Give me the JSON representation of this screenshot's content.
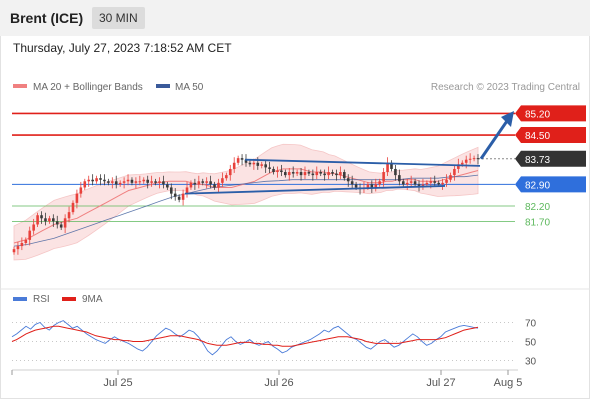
{
  "header": {
    "instrument": "Brent (ICE)",
    "timeframe": "30 MIN",
    "datetime": "Thursday, July 27, 2023 7:18:52 AM CET"
  },
  "legend": {
    "ma20_label": "MA 20 + Bollinger Bands",
    "ma50_label": "MA 50",
    "credit": "Research © 2023 Trading Central",
    "rsi_label": "RSI",
    "ma9_label": "9MA"
  },
  "colors": {
    "up": "#e8413b",
    "down": "#3b3b3b",
    "ma20": "#f08080",
    "ma50": "#3a5a9a",
    "bollinger_fill": "#fbe3e3",
    "resistance": "#e0201a",
    "current": "#333333",
    "pivot": "#2f6fdc",
    "support": "#5cb85c",
    "arrow": "#2b5ea8",
    "rsi": "#4a7bd8",
    "rsi_ma": "#e0201a"
  },
  "chart_data": [
    {
      "type": "candlestick",
      "x_ticks": [
        "Jul 25",
        "Jul 26",
        "Jul 27",
        "Aug 5"
      ],
      "ylim": [
        79.8,
        85.7
      ],
      "levels": [
        {
          "value": 85.2,
          "label": "85.20",
          "kind": "resistance"
        },
        {
          "value": 84.5,
          "label": "84.50",
          "kind": "resistance"
        },
        {
          "value": 83.73,
          "label": "83.73",
          "kind": "current"
        },
        {
          "value": 82.9,
          "label": "82.90",
          "kind": "pivot"
        },
        {
          "value": 82.2,
          "label": "82.20",
          "kind": "support"
        },
        {
          "value": 81.7,
          "label": "81.70",
          "kind": "support"
        }
      ],
      "close_values": [
        80.8,
        80.9,
        81.0,
        81.1,
        81.4,
        81.6,
        81.9,
        81.8,
        81.7,
        81.8,
        81.7,
        81.6,
        81.5,
        81.8,
        82.0,
        82.3,
        82.6,
        82.8,
        83.0,
        83.05,
        83.0,
        83.1,
        83.05,
        83.0,
        82.95,
        83.0,
        82.9,
        82.95,
        83.0,
        83.05,
        82.95,
        83.0,
        83.0,
        83.05,
        82.95,
        83.0,
        82.95,
        83.0,
        82.9,
        82.8,
        82.6,
        82.5,
        82.4,
        82.6,
        82.8,
        82.95,
        82.9,
        83.0,
        82.95,
        83.0,
        82.9,
        82.8,
        82.95,
        83.1,
        83.2,
        83.4,
        83.6,
        83.75,
        83.7,
        83.6,
        83.55,
        83.6,
        83.5,
        83.55,
        83.45,
        83.4,
        83.3,
        83.35,
        83.3,
        83.2,
        83.3,
        83.25,
        83.3,
        83.2,
        83.3,
        83.25,
        83.2,
        83.3,
        83.25,
        83.2,
        83.3,
        83.25,
        83.2,
        83.3,
        83.1,
        83.0,
        82.9,
        82.8,
        82.75,
        82.8,
        82.9,
        82.8,
        82.9,
        83.0,
        83.3,
        83.6,
        83.4,
        83.2,
        83.0,
        82.9,
        82.95,
        83.0,
        82.9,
        82.85,
        82.9,
        82.95,
        83.0,
        82.95,
        82.9,
        82.95,
        83.05,
        83.2,
        83.4,
        83.55,
        83.6,
        83.7,
        83.73,
        83.75,
        83.73
      ],
      "ma20_values": [
        81.0,
        81.05,
        81.1,
        81.2,
        81.3,
        81.4,
        81.5,
        81.6,
        81.65,
        81.7,
        81.75,
        81.8,
        81.9,
        82.0,
        82.1,
        82.2,
        82.3,
        82.4,
        82.5,
        82.6,
        82.7,
        82.75,
        82.8,
        82.85,
        82.9,
        82.95,
        82.97,
        83.0,
        83.0,
        83.0,
        83.0,
        82.95,
        82.9,
        82.9,
        82.85,
        82.8,
        82.8,
        82.8,
        82.8,
        82.85,
        82.9,
        82.95,
        83.0,
        83.1,
        83.2,
        83.3,
        83.35,
        83.4,
        83.4,
        83.4,
        83.4,
        83.35,
        83.3,
        83.3,
        83.3,
        83.25,
        83.25,
        83.2,
        83.15,
        83.1,
        83.05,
        83.0,
        82.95,
        82.95,
        82.95,
        83.0,
        83.0,
        83.05,
        83.05,
        83.05,
        83.05,
        83.0,
        83.0,
        83.0,
        83.0,
        83.05,
        83.1,
        83.15,
        83.2,
        83.25,
        83.3,
        83.35
      ],
      "ma50_values": [
        80.9,
        80.95,
        81.05,
        81.15,
        81.3,
        81.45,
        81.6,
        81.75,
        81.9,
        82.05,
        82.2,
        82.35,
        82.5,
        82.6,
        82.7,
        82.8,
        82.85,
        82.9,
        82.95,
        83.0,
        83.02,
        83.05,
        83.05,
        83.05,
        83.05,
        83.05,
        83.05,
        83.05,
        83.05,
        83.05,
        83.1,
        83.1,
        83.1,
        83.15,
        83.15,
        83.2
      ],
      "trendline_upper": [
        [
          83.7
        ],
        [
          83.5
        ]
      ],
      "trendline_lower": [
        [
          82.6
        ],
        [
          82.85
        ]
      ],
      "forecast_target": 85.15
    },
    {
      "type": "line",
      "name": "RSI",
      "ylim": [
        20,
        80
      ],
      "y_ticks": [
        70,
        50,
        30
      ],
      "rsi_values": [
        55,
        58,
        62,
        66,
        63,
        68,
        70,
        65,
        62,
        67,
        70,
        72,
        68,
        64,
        66,
        62,
        58,
        55,
        52,
        50,
        48,
        52,
        55,
        52,
        50,
        48,
        45,
        42,
        40,
        44,
        50,
        56,
        60,
        64,
        62,
        58,
        55,
        58,
        62,
        60,
        55,
        48,
        40,
        36,
        40,
        46,
        52,
        55,
        50,
        47,
        49,
        52,
        48,
        46,
        48,
        50,
        45,
        42,
        38,
        40,
        44,
        46,
        48,
        50,
        52,
        55,
        58,
        62,
        60,
        64,
        66,
        62,
        58,
        54,
        52,
        48,
        44,
        42,
        46,
        50,
        52,
        48,
        44,
        46,
        50,
        54,
        58,
        55,
        50,
        46,
        48,
        52,
        55,
        60,
        62,
        64,
        66,
        67,
        66,
        65,
        64
      ],
      "rsi_ma_values": [
        50,
        52,
        55,
        58,
        60,
        62,
        63,
        64,
        65,
        66,
        66,
        65,
        64,
        63,
        62,
        61,
        60,
        58,
        56,
        55,
        54,
        53,
        52,
        52,
        51,
        51,
        50,
        50,
        50,
        51,
        52,
        53,
        54,
        55,
        56,
        56,
        56,
        55,
        54,
        53,
        52,
        50,
        48,
        47,
        46,
        46,
        46,
        47,
        48,
        49,
        49,
        49,
        48,
        48,
        47,
        47,
        46,
        46,
        45,
        45,
        45,
        46,
        47,
        48,
        49,
        50,
        51,
        52,
        53,
        54,
        55,
        55,
        55,
        54,
        53,
        52,
        50,
        49,
        48,
        48,
        48,
        48,
        48,
        48,
        49,
        50,
        51,
        52,
        52,
        52,
        52,
        52,
        53,
        54,
        56,
        58,
        60,
        62,
        63,
        64,
        65
      ]
    }
  ]
}
